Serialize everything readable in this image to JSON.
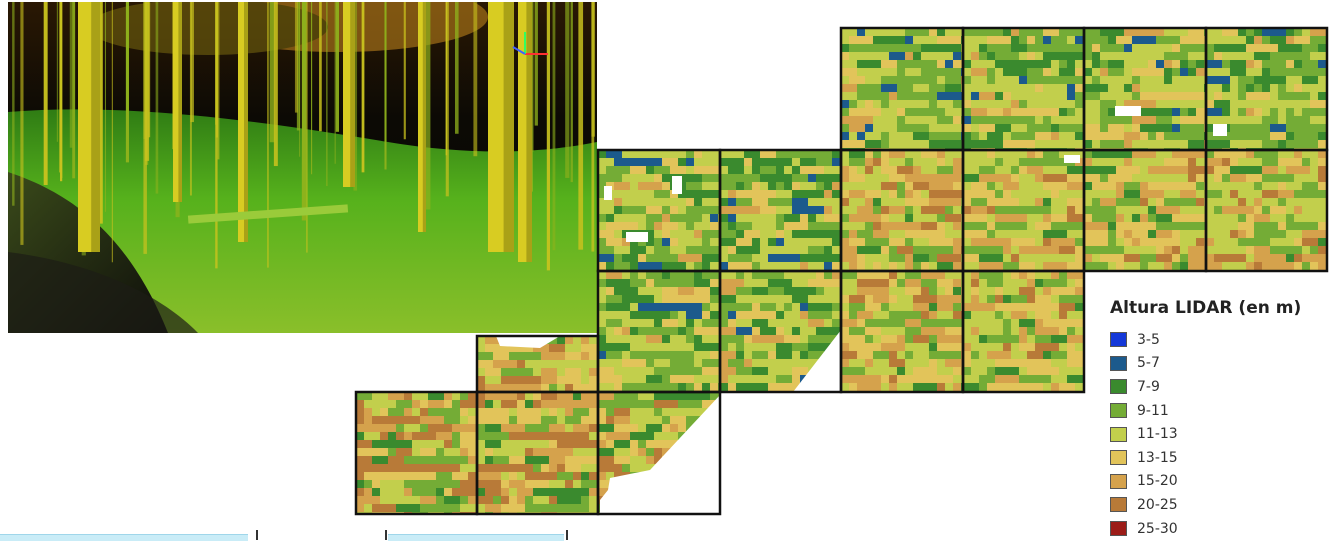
{
  "legend": {
    "title": "Altura LIDAR (en m)",
    "classes": [
      {
        "label": "3-5",
        "color": "#1438d8"
      },
      {
        "label": "5-7",
        "color": "#1c5a8c"
      },
      {
        "label": "7-9",
        "color": "#3a8a2e"
      },
      {
        "label": "9-11",
        "color": "#74ac36"
      },
      {
        "label": "11-13",
        "color": "#c2cf4c"
      },
      {
        "label": "13-15",
        "color": "#e2c45a"
      },
      {
        "label": "15-20",
        "color": "#d5a24c"
      },
      {
        "label": "20-25",
        "color": "#b87a38"
      },
      {
        "label": "25-30",
        "color": "#9c1c18"
      }
    ]
  },
  "photo": {
    "background_color": "#0a0a06",
    "ground_color": "#5fae22",
    "trunk_color": "#c9c21e",
    "canopy_color": "#c98a1e"
  }
}
